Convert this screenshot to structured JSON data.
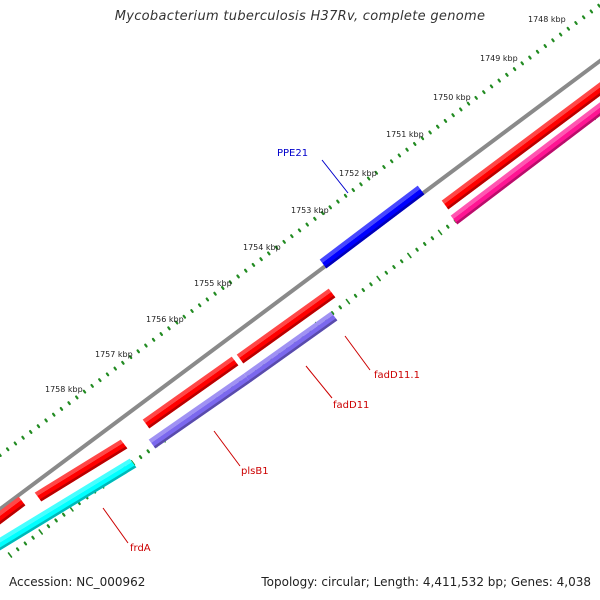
{
  "title": "Mycobacterium tuberculosis H37Rv, complete genome",
  "footer": {
    "accession": "Accession: NC_000962",
    "stats": "Topology: circular; Length: 4,411,532 bp; Genes: 4,038"
  },
  "colors": {
    "backbone": "#8a8a8a",
    "forward_cds": "#ff0000",
    "reverse_cds": "#ff1493",
    "ppe_gene": "#0000ff",
    "blue_gene_label": "#0000cc",
    "purple_gene": "#7b68ee",
    "cyan_gene": "#00ffff",
    "red_gene_label": "#cc0000",
    "tick": "#228b22"
  },
  "kbp_ticks": [
    "1748 kbp",
    "1749 kbp",
    "1750 kbp",
    "1751 kbp",
    "1752 kbp",
    "1753 kbp",
    "1754 kbp",
    "1755 kbp",
    "1756 kbp",
    "1757 kbp",
    "1758 kbp"
  ],
  "gene_labels": [
    {
      "name": "PPE21",
      "color_key": "blue_gene_label"
    },
    {
      "name": "fadD11.1",
      "color_key": "red_gene_label"
    },
    {
      "name": "fadD11",
      "color_key": "red_gene_label"
    },
    {
      "name": "plsB1",
      "color_key": "red_gene_label"
    },
    {
      "name": "frdA",
      "color_key": "red_gene_label"
    }
  ]
}
